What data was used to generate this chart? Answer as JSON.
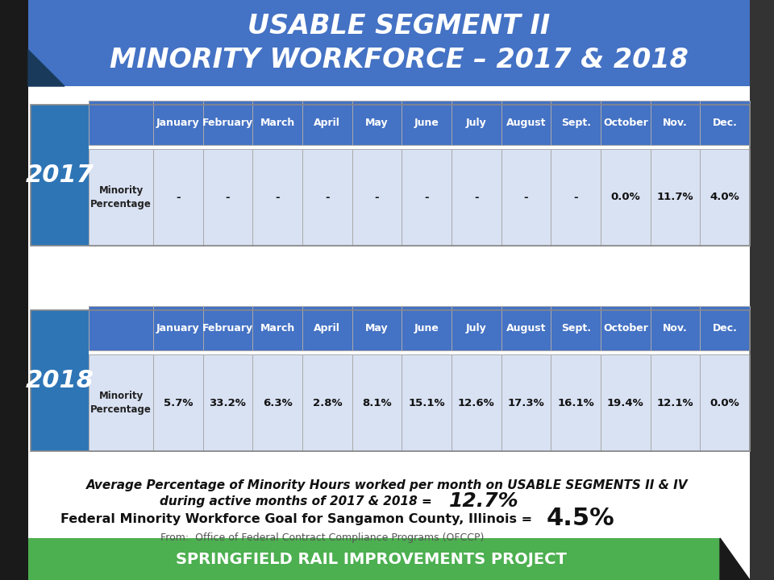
{
  "title_line1": "USABLE SEGMENT II",
  "title_line2": "MINORITY WORKFORCE – 2017 & 2018",
  "title_bg_color": "#4472C4",
  "header_bg_color": "#4472C4",
  "year_bg_color": "#2E75B6",
  "data_row_bg_color": "#D9E2F3",
  "months": [
    "January",
    "February",
    "March",
    "April",
    "May",
    "June",
    "July",
    "August",
    "Sept.",
    "October",
    "Nov.",
    "Dec."
  ],
  "data_2017": [
    "-",
    "-",
    "-",
    "-",
    "-",
    "-",
    "-",
    "-",
    "-",
    "0.0%",
    "11.7%",
    "4.0%"
  ],
  "data_2018": [
    "5.7%",
    "33.2%",
    "6.3%",
    "2.8%",
    "8.1%",
    "15.1%",
    "12.6%",
    "17.3%",
    "16.1%",
    "19.4%",
    "12.1%",
    "0.0%"
  ],
  "footer_text": "SPRINGFIELD RAIL IMPROVEMENTS PROJECT",
  "footer_bg_color": "#4CAF50",
  "bg_color": "#ffffff",
  "note_line1": "Average Percentage of Minority Hours worked per month on USABLE SEGMENTS II & IV",
  "note_line2": "during active months of 2017 & 2018 = ",
  "note_avg": "12.7%",
  "goal_line": "Federal Minority Workforce Goal for Sangamon County, Illinois = ",
  "goal_value": "4.5%",
  "source_line": "From:  Office of Federal Contract Compliance Programs (OFCCP)",
  "header_text_color": "#ffffff",
  "label_text_color": "#222222",
  "data_text_color": "#111111",
  "grid_color": "#aaaaaa",
  "outer_border_color": "#888888",
  "left_bar_color": "#1a1a1a",
  "right_bar_color": "#333333",
  "footer_triangle_color": "#1a1a1a",
  "title_italic": true,
  "title_fontsize": 24,
  "header_fontsize": 9,
  "year_fontsize": 22,
  "label_fontsize": 8.5,
  "data_fontsize": 9.5,
  "note_fontsize": 11,
  "avg_fontsize": 18,
  "goal_fontsize": 11.5,
  "goal_val_fontsize": 22,
  "source_fontsize": 9,
  "footer_fontsize": 14,
  "L": 38,
  "R": 930,
  "YW": 72,
  "LW": 80
}
